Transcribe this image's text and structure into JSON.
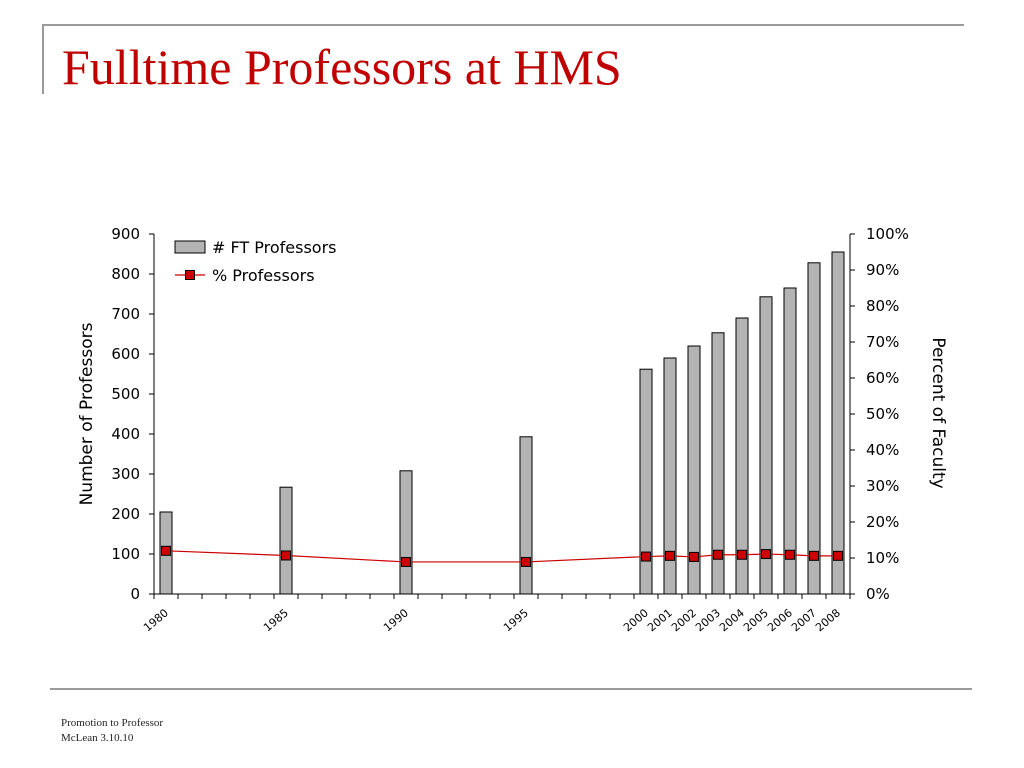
{
  "slide": {
    "title": "Fulltime Professors at HMS",
    "footer_line1": "Promotion to Professor",
    "footer_line2": "McLean 3.10.10"
  },
  "chart_data": {
    "type": "bar",
    "x": [
      1980,
      1981,
      1982,
      1983,
      1984,
      1985,
      1986,
      1987,
      1988,
      1989,
      1990,
      1991,
      1992,
      1993,
      1994,
      1995,
      1996,
      1997,
      1998,
      1999,
      2000,
      2001,
      2002,
      2003,
      2004,
      2005,
      2006,
      2007,
      2008
    ],
    "x_tick_labels": [
      "1980",
      "",
      "",
      "",
      "",
      "1985",
      "",
      "",
      "",
      "",
      "1990",
      "",
      "",
      "",
      "",
      "1995",
      "",
      "",
      "",
      "",
      "2000",
      "2001",
      "2002",
      "2003",
      "2004",
      "2005",
      "2006",
      "2007",
      "2008"
    ],
    "series": [
      {
        "name": "# FT Professors",
        "type": "bar",
        "axis": "left",
        "color": "#b3b3b3",
        "values": [
          205,
          null,
          null,
          null,
          null,
          267,
          null,
          null,
          null,
          null,
          308,
          null,
          null,
          null,
          null,
          393,
          null,
          null,
          null,
          null,
          562,
          590,
          620,
          653,
          690,
          743,
          765,
          828,
          855
        ]
      },
      {
        "name": "% Professors",
        "type": "line",
        "axis": "right",
        "color": "#cc0000",
        "values": [
          12,
          null,
          null,
          null,
          null,
          10.7,
          null,
          null,
          null,
          null,
          8.9,
          null,
          null,
          null,
          null,
          8.9,
          null,
          null,
          null,
          null,
          10.4,
          10.6,
          10.3,
          10.9,
          10.9,
          11.1,
          10.9,
          10.6,
          10.6
        ]
      }
    ],
    "ylabel": "Number of Professors",
    "ylim": [
      0,
      900
    ],
    "y_ticks": [
      0,
      100,
      200,
      300,
      400,
      500,
      600,
      700,
      800,
      900
    ],
    "y2label": "Percent of Faculty",
    "y2lim": [
      0,
      100
    ],
    "y2_ticks": [
      "0%",
      "10%",
      "20%",
      "30%",
      "40%",
      "50%",
      "60%",
      "70%",
      "80%",
      "90%",
      "100%"
    ],
    "grid": false,
    "legend_position": "top-left"
  }
}
